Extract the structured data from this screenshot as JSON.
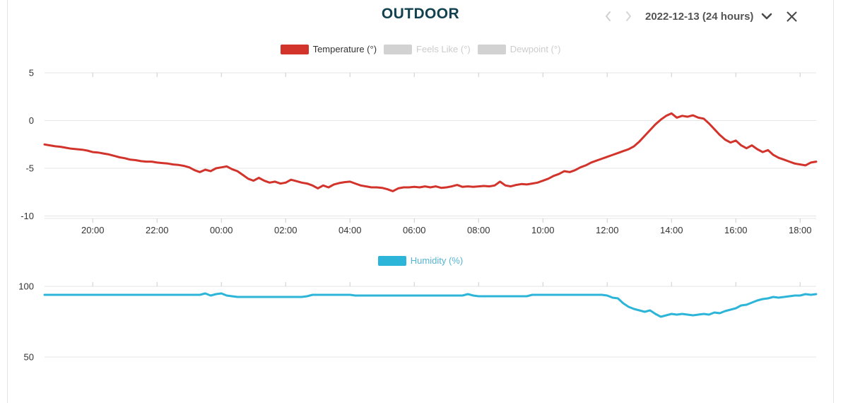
{
  "header": {
    "title": "OUTDOOR",
    "date_range": "2022-12-13 (24 hours)"
  },
  "colors": {
    "title": "#12424f",
    "date_text": "#545454",
    "header_icon": "#4a4a4a",
    "nav_arrow": "#cfcfcf",
    "grid": "#e6e6e6",
    "tick": "#cccccc",
    "axis_label": "#333333",
    "temperature": "#d2342c",
    "humidity": "#2cb5d8",
    "disabled_legend": "#cccccc"
  },
  "chart_data": [
    {
      "type": "line",
      "name": "temperature-chart",
      "title": "",
      "legend": [
        {
          "label": "Temperature (°)",
          "swatch_color": "#d2342c",
          "label_color": "#333333",
          "enabled": true
        },
        {
          "label": "Feels Like (°)",
          "swatch_color": "#d2d2d2",
          "label_color": "#cccccc",
          "enabled": false
        },
        {
          "label": "Dewpoint (°)",
          "swatch_color": "#d2d2d2",
          "label_color": "#cccccc",
          "enabled": false
        }
      ],
      "x_start_time": "18:30",
      "x_end_time": "18:30 next day",
      "x_interval_minutes": 10,
      "x_labels_visible": true,
      "grid": true,
      "legend_position": "top-center",
      "ylim": [
        -10,
        5
      ],
      "yticks": [
        {
          "v": 5,
          "label": "5"
        },
        {
          "v": 0,
          "label": "0"
        },
        {
          "v": -5,
          "label": "-5"
        },
        {
          "v": -10,
          "label": "-10"
        }
      ],
      "xticks": [
        {
          "m": 90,
          "label": "20:00"
        },
        {
          "m": 210,
          "label": "22:00"
        },
        {
          "m": 330,
          "label": "00:00"
        },
        {
          "m": 450,
          "label": "02:00"
        },
        {
          "m": 570,
          "label": "04:00"
        },
        {
          "m": 690,
          "label": "06:00"
        },
        {
          "m": 810,
          "label": "08:00"
        },
        {
          "m": 930,
          "label": "10:00"
        },
        {
          "m": 1050,
          "label": "12:00"
        },
        {
          "m": 1170,
          "label": "14:00"
        },
        {
          "m": 1290,
          "label": "16:00"
        },
        {
          "m": 1410,
          "label": "18:00"
        }
      ],
      "series": [
        {
          "name": "Temperature (°)",
          "color": "#d2342c",
          "unit": "°",
          "values": [
            -2.5,
            -2.6,
            -2.7,
            -2.75,
            -2.85,
            -2.95,
            -3.0,
            -3.05,
            -3.15,
            -3.3,
            -3.35,
            -3.45,
            -3.55,
            -3.7,
            -3.85,
            -3.95,
            -4.1,
            -4.15,
            -4.25,
            -4.3,
            -4.3,
            -4.4,
            -4.45,
            -4.5,
            -4.6,
            -4.65,
            -4.75,
            -4.9,
            -5.2,
            -5.4,
            -5.15,
            -5.3,
            -5.0,
            -4.9,
            -4.8,
            -5.1,
            -5.3,
            -5.7,
            -6.1,
            -6.3,
            -6.0,
            -6.3,
            -6.5,
            -6.4,
            -6.6,
            -6.5,
            -6.2,
            -6.35,
            -6.5,
            -6.6,
            -6.8,
            -7.1,
            -6.8,
            -7.0,
            -6.7,
            -6.55,
            -6.45,
            -6.4,
            -6.6,
            -6.8,
            -6.9,
            -7.0,
            -7.0,
            -7.05,
            -7.2,
            -7.4,
            -7.1,
            -7.0,
            -7.0,
            -6.95,
            -7.0,
            -6.9,
            -7.0,
            -6.9,
            -7.05,
            -7.0,
            -6.9,
            -6.75,
            -6.95,
            -6.9,
            -6.95,
            -6.9,
            -6.85,
            -6.9,
            -6.8,
            -6.4,
            -6.8,
            -6.9,
            -6.75,
            -6.65,
            -6.7,
            -6.6,
            -6.5,
            -6.3,
            -6.1,
            -5.8,
            -5.6,
            -5.3,
            -5.4,
            -5.2,
            -4.9,
            -4.7,
            -4.4,
            -4.2,
            -4.0,
            -3.8,
            -3.6,
            -3.4,
            -3.2,
            -3.0,
            -2.7,
            -2.2,
            -1.6,
            -1.0,
            -0.4,
            0.1,
            0.5,
            0.75,
            0.3,
            0.5,
            0.4,
            0.55,
            0.3,
            0.2,
            -0.3,
            -0.9,
            -1.5,
            -2.0,
            -2.3,
            -2.1,
            -2.6,
            -2.9,
            -2.6,
            -3.0,
            -3.3,
            -3.1,
            -3.6,
            -3.9,
            -4.1,
            -4.3,
            -4.5,
            -4.6,
            -4.7,
            -4.4,
            -4.3
          ]
        }
      ]
    },
    {
      "type": "line",
      "name": "humidity-chart",
      "title": "",
      "legend": [
        {
          "label": "Humidity (%)",
          "swatch_color": "#2cb5d8",
          "label_color": "#55b4d2",
          "enabled": true
        }
      ],
      "x_start_time": "18:30",
      "x_end_time": "18:30 next day",
      "x_interval_minutes": 10,
      "x_labels_visible": false,
      "grid": true,
      "legend_position": "top-center",
      "ylim_visible": [
        50,
        100
      ],
      "yticks": [
        {
          "v": 100,
          "label": "100"
        },
        {
          "v": 50,
          "label": "50"
        }
      ],
      "xticks": [
        {
          "m": 90,
          "label": ""
        },
        {
          "m": 210,
          "label": ""
        },
        {
          "m": 330,
          "label": ""
        },
        {
          "m": 450,
          "label": ""
        },
        {
          "m": 570,
          "label": ""
        },
        {
          "m": 690,
          "label": ""
        },
        {
          "m": 810,
          "label": ""
        },
        {
          "m": 930,
          "label": ""
        },
        {
          "m": 1050,
          "label": ""
        },
        {
          "m": 1170,
          "label": ""
        },
        {
          "m": 1290,
          "label": ""
        },
        {
          "m": 1410,
          "label": ""
        }
      ],
      "series": [
        {
          "name": "Humidity (%)",
          "color": "#2cb5d8",
          "unit": "%",
          "values": [
            94,
            94,
            94,
            94,
            94,
            94,
            94,
            94,
            94,
            94,
            94,
            94,
            94,
            94,
            94,
            94,
            94,
            94,
            94,
            94,
            94,
            94,
            94,
            94,
            94,
            94,
            94,
            94,
            94,
            94,
            95,
            93.5,
            94.5,
            95,
            93.5,
            93,
            92.5,
            92.5,
            92.5,
            92.5,
            92.5,
            92.5,
            92.5,
            92.5,
            92.5,
            92.5,
            92.5,
            92.5,
            92.5,
            93,
            94,
            94,
            94,
            94,
            94,
            94,
            94,
            94,
            93.5,
            93.5,
            93.5,
            93.5,
            93.5,
            93.5,
            93.5,
            93.5,
            93.5,
            93.5,
            93.5,
            93.5,
            93.5,
            93.5,
            93.5,
            93.5,
            93.5,
            93.5,
            93.5,
            93.5,
            93.5,
            94.5,
            93.5,
            93,
            93,
            93,
            93,
            93,
            93,
            93,
            93,
            93,
            93,
            94,
            94,
            94,
            94,
            94,
            94,
            94,
            94,
            94,
            94,
            94,
            94,
            94,
            94,
            93.5,
            92,
            91.5,
            88,
            85.5,
            84,
            83,
            82,
            83,
            80.5,
            78.5,
            79.5,
            80.5,
            80,
            80.5,
            80,
            79.5,
            80,
            80.5,
            80,
            81.5,
            81,
            82.5,
            83.5,
            84.5,
            86.5,
            87,
            88.5,
            90,
            91,
            91.5,
            92.5,
            92,
            92.5,
            93,
            93.5,
            93.5,
            94.5,
            94,
            94.5
          ]
        }
      ]
    }
  ]
}
